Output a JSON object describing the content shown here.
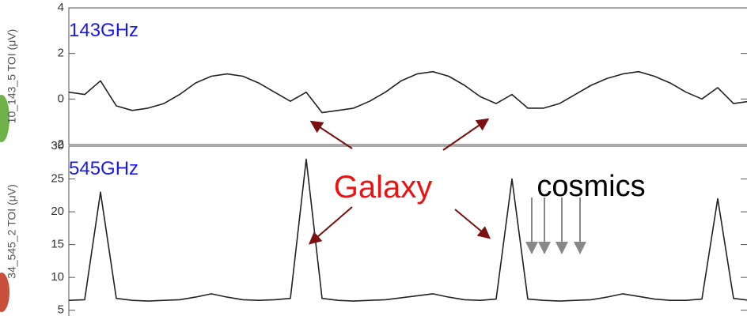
{
  "chart_data": [
    {
      "type": "line",
      "label": "143GHz",
      "y_label": "10_143_5 TOI (μV)",
      "color": "#222222",
      "values": [
        0.3,
        0.2,
        0.8,
        -0.3,
        -0.5,
        -0.4,
        -0.2,
        0.2,
        0.7,
        1.0,
        1.1,
        1.0,
        0.7,
        0.3,
        -0.1,
        0.3,
        -0.6,
        -0.5,
        -0.4,
        -0.1,
        0.3,
        0.8,
        1.1,
        1.2,
        1.0,
        0.6,
        0.1,
        -0.2,
        0.2,
        -0.4,
        -0.4,
        -0.2,
        0.2,
        0.6,
        0.9,
        1.1,
        1.2,
        1.0,
        0.7,
        0.3,
        0.0,
        0.5,
        -0.2,
        -0.1
      ],
      "ylim": [
        -2,
        4
      ],
      "yticks": [
        -2,
        0,
        2,
        4
      ]
    },
    {
      "type": "line",
      "label": "545GHz",
      "y_label": "34_545_2 TOI (μV)",
      "color": "#222222",
      "values": [
        6.5,
        6.6,
        23,
        6.8,
        6.5,
        6.4,
        6.5,
        6.6,
        7.0,
        7.5,
        7.0,
        6.6,
        6.5,
        6.6,
        6.8,
        28,
        6.8,
        6.5,
        6.4,
        6.5,
        6.6,
        6.9,
        7.2,
        7.5,
        7.0,
        6.6,
        6.5,
        6.7,
        25,
        6.7,
        6.5,
        6.4,
        6.5,
        6.6,
        7.0,
        7.5,
        7.1,
        6.7,
        6.5,
        6.5,
        6.7,
        22,
        6.8,
        6.5
      ],
      "ylim": [
        4,
        30
      ],
      "yticks": [
        5,
        10,
        15,
        20,
        25,
        30
      ]
    }
  ],
  "annotations": {
    "galaxy": "Galaxy",
    "cosmics": "cosmics"
  }
}
